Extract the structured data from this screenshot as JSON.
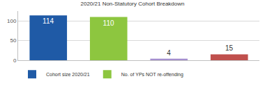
{
  "chart_data": {
    "type": "bar",
    "title": "2020/21 Non-Statutory Cohort Breakdown",
    "categories": [
      null,
      null,
      null,
      null
    ],
    "series": [
      {
        "name": "Cohort size 2020/21",
        "color": "#1f5aa6",
        "values": [
          114,
          null,
          null,
          null
        ]
      },
      {
        "name": "No. of YPs NOT re-offending",
        "color": "#8dc63f",
        "values": [
          null,
          110,
          null,
          null
        ]
      },
      {
        "name": null,
        "color": "#a58fcf",
        "values": [
          null,
          null,
          4,
          null
        ]
      },
      {
        "name": null,
        "color": "#c0504d",
        "values": [
          null,
          null,
          null,
          15
        ]
      }
    ],
    "ylim": [
      0,
      125
    ],
    "yticks": [
      0,
      50,
      100
    ],
    "grid": true,
    "legend": "bottom",
    "data_labels": true,
    "tick_labels": "y"
  }
}
